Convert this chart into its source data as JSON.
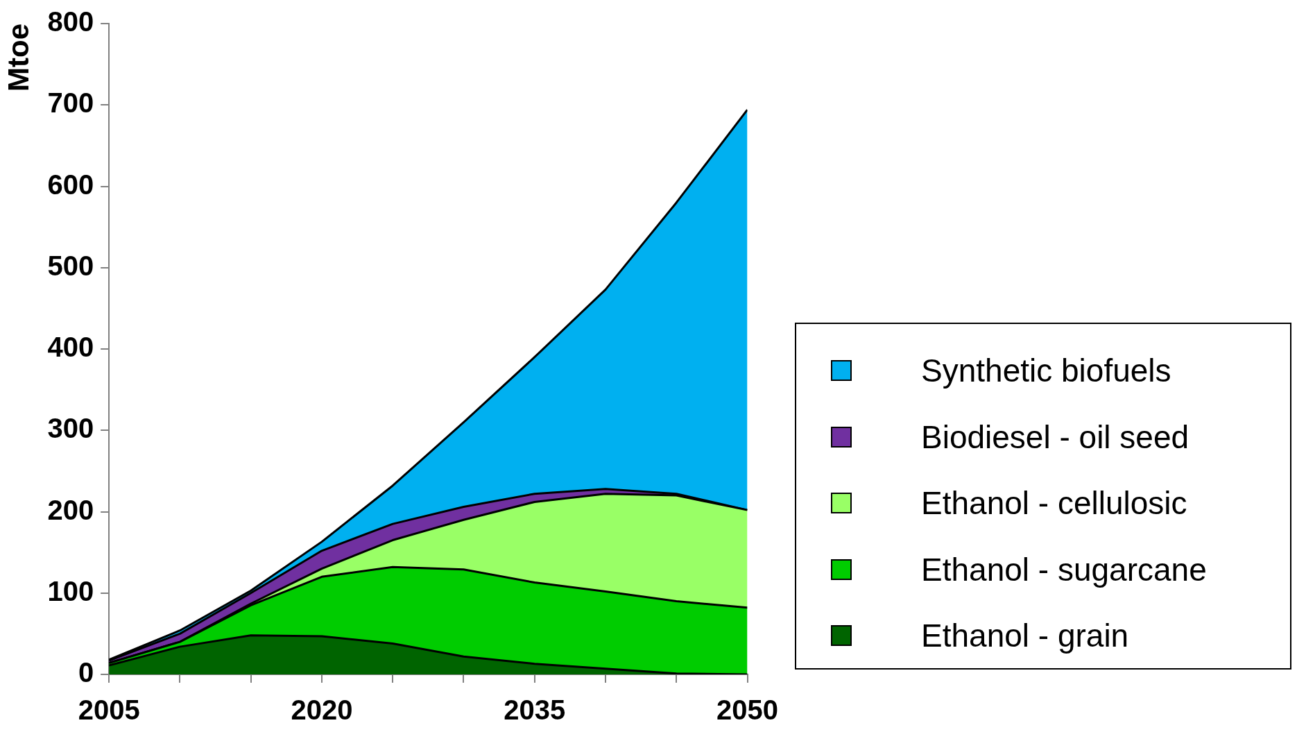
{
  "chart_data": {
    "type": "area",
    "stacked": true,
    "ylabel": "Mtoe",
    "x": [
      2005,
      2010,
      2015,
      2020,
      2025,
      2030,
      2035,
      2040,
      2045,
      2050
    ],
    "xlim": [
      2005,
      2050
    ],
    "xticks": [
      2005,
      {
        "value": 2010,
        "label": null
      },
      {
        "value": 2015,
        "label": null
      },
      2020,
      {
        "value": 2025,
        "label": null
      },
      {
        "value": 2030,
        "label": null
      },
      2035,
      {
        "value": 2040,
        "label": null
      },
      {
        "value": 2045,
        "label": null
      },
      2050
    ],
    "ylim": [
      0,
      800
    ],
    "yticks": [
      0,
      100,
      200,
      300,
      400,
      500,
      600,
      700,
      800
    ],
    "grid": false,
    "legend": "right",
    "marker": "none",
    "series": [
      {
        "name": "Ethanol - grain",
        "color": "#006400",
        "values": [
          11,
          34,
          48,
          47,
          38,
          22,
          13,
          7,
          1,
          0
        ]
      },
      {
        "name": "Ethanol - sugarcane",
        "color": "#00cc00",
        "values": [
          3,
          6,
          37,
          73,
          94,
          107,
          100,
          95,
          89,
          82
        ]
      },
      {
        "name": "Ethanol - cellulosic",
        "color": "#99ff66",
        "values": [
          0,
          0,
          2,
          10,
          33,
          61,
          99,
          120,
          130,
          120
        ]
      },
      {
        "name": "Biodiesel - oil seed",
        "color": "#7030a0",
        "values": [
          3,
          10,
          13,
          22,
          20,
          16,
          10,
          6,
          2,
          0
        ]
      },
      {
        "name": "Synthetic biofuels",
        "color": "#00b0f0",
        "values": [
          1,
          4,
          3,
          11,
          47,
          104,
          168,
          245,
          358,
          492
        ]
      }
    ]
  }
}
